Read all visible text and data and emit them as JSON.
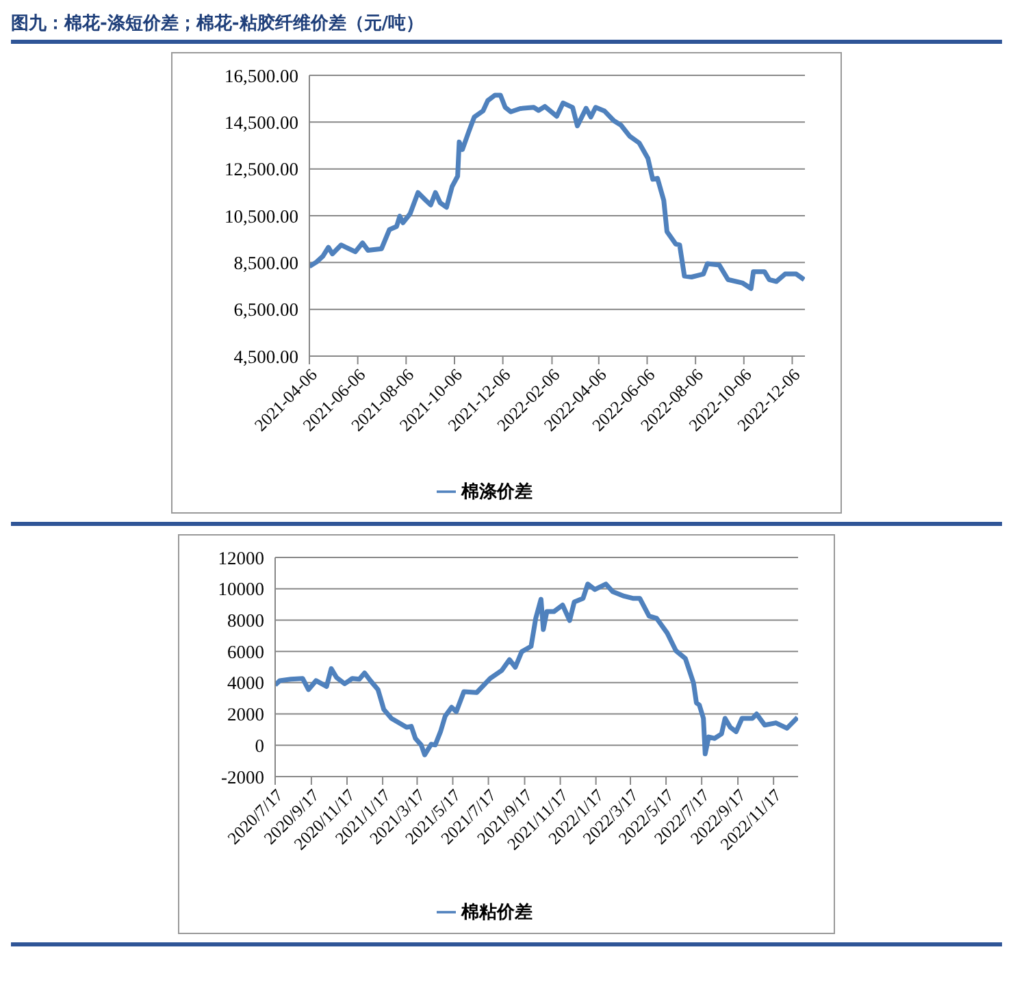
{
  "chart_data": [
    {
      "type": "line",
      "title": "图九：棉花-涤短价差；棉花-粘胶纤维价差（元/吨）",
      "xlim": [
        "2021-04-06",
        "2022-12-22"
      ],
      "xticks": [
        "2021-04-06",
        "2021-06-06",
        "2021-08-06",
        "2021-10-06",
        "2021-12-06",
        "2022-02-06",
        "2022-04-06",
        "2022-06-06",
        "2022-08-06",
        "2022-10-06",
        "2022-12-06"
      ],
      "ylim": [
        4500,
        16500
      ],
      "yticks": [
        {
          "value": 4500,
          "label": "4,500.00"
        },
        {
          "value": 6500,
          "label": "6,500.00"
        },
        {
          "value": 8500,
          "label": "8,500.00"
        },
        {
          "value": 10500,
          "label": "10,500.00"
        },
        {
          "value": 12500,
          "label": "12,500.00"
        },
        {
          "value": 14500,
          "label": "14,500.00"
        },
        {
          "value": 16500,
          "label": "16,500.00"
        }
      ],
      "grid": "y",
      "legend": "bottom",
      "marker": "none",
      "series": [
        {
          "name": "棉涤价差",
          "color": "#4f81bd",
          "x": [
            "2021-04-06",
            "2021-04-15",
            "2021-04-23",
            "2021-04-30",
            "2021-05-05",
            "2021-05-16",
            "2021-06-03",
            "2021-06-12",
            "2021-06-19",
            "2021-07-06",
            "2021-07-16",
            "2021-07-25",
            "2021-07-29",
            "2021-08-02",
            "2021-08-11",
            "2021-08-21",
            "2021-08-31",
            "2021-09-06",
            "2021-09-12",
            "2021-09-18",
            "2021-09-26",
            "2021-10-03",
            "2021-10-10",
            "2021-10-12",
            "2021-10-16",
            "2021-10-24",
            "2021-10-31",
            "2021-11-11",
            "2021-11-17",
            "2021-11-26",
            "2021-12-03",
            "2021-12-09",
            "2021-12-16",
            "2021-12-28",
            "2022-01-14",
            "2022-01-20",
            "2022-01-28",
            "2022-02-12",
            "2022-02-20",
            "2022-03-04",
            "2022-03-10",
            "2022-03-21",
            "2022-03-27",
            "2022-04-02",
            "2022-04-13",
            "2022-04-25",
            "2022-05-04",
            "2022-05-15",
            "2022-05-27",
            "2022-06-07",
            "2022-06-13",
            "2022-06-19",
            "2022-06-27",
            "2022-07-01",
            "2022-07-12",
            "2022-07-17",
            "2022-07-23",
            "2022-08-01",
            "2022-08-16",
            "2022-08-21",
            "2022-09-05",
            "2022-09-16",
            "2022-10-04",
            "2022-10-15",
            "2022-10-18",
            "2022-11-01",
            "2022-11-07",
            "2022-11-16",
            "2022-11-27",
            "2022-12-11",
            "2022-12-21"
          ],
          "values": [
            8330,
            8520,
            8770,
            9150,
            8870,
            9250,
            8960,
            9340,
            9020,
            9090,
            9910,
            10040,
            10480,
            10200,
            10580,
            11490,
            11150,
            10960,
            11490,
            11050,
            10860,
            11750,
            12190,
            13650,
            13330,
            14090,
            14720,
            14980,
            15420,
            15650,
            15650,
            15130,
            14940,
            15080,
            15130,
            15000,
            15170,
            14750,
            15320,
            15130,
            14340,
            15090,
            14720,
            15130,
            14980,
            14560,
            14370,
            13900,
            13610,
            12950,
            12060,
            12100,
            11150,
            9820,
            9290,
            9250,
            7920,
            7880,
            8010,
            8450,
            8390,
            7770,
            7630,
            7390,
            8110,
            8110,
            7770,
            7690,
            8010,
            8010,
            7770
          ]
        }
      ]
    },
    {
      "type": "line",
      "xlim": [
        "2020-07-17",
        "2022-12-29"
      ],
      "xticks": [
        {
          "value": "2020-07-17",
          "label": "2020/7/17"
        },
        {
          "value": "2020-09-17",
          "label": "2020/9/17"
        },
        {
          "value": "2020-11-17",
          "label": "2020/11/17"
        },
        {
          "value": "2021-01-17",
          "label": "2021/1/17"
        },
        {
          "value": "2021-03-17",
          "label": "2021/3/17"
        },
        {
          "value": "2021-05-17",
          "label": "2021/5/17"
        },
        {
          "value": "2021-07-17",
          "label": "2021/7/17"
        },
        {
          "value": "2021-09-17",
          "label": "2021/9/17"
        },
        {
          "value": "2021-11-17",
          "label": "2021/11/17"
        },
        {
          "value": "2022-01-17",
          "label": "2022/1/17"
        },
        {
          "value": "2022-03-17",
          "label": "2022/3/17"
        },
        {
          "value": "2022-05-17",
          "label": "2022/5/17"
        },
        {
          "value": "2022-07-17",
          "label": "2022/7/17"
        },
        {
          "value": "2022-09-17",
          "label": "2022/9/17"
        },
        {
          "value": "2022-11-17",
          "label": "2022/11/17"
        }
      ],
      "ylim": [
        -2000,
        12000
      ],
      "yticks": [
        -2000,
        0,
        2000,
        4000,
        6000,
        8000,
        10000,
        12000
      ],
      "grid": "y",
      "legend": "bottom",
      "marker": "none",
      "series": [
        {
          "name": "棉粘价差",
          "color": "#4f81bd",
          "x": [
            "2020-07-17",
            "2020-07-25",
            "2020-08-13",
            "2020-09-02",
            "2020-09-12",
            "2020-09-25",
            "2020-10-13",
            "2020-10-21",
            "2020-10-30",
            "2020-11-13",
            "2020-11-26",
            "2020-12-08",
            "2020-12-17",
            "2020-12-27",
            "2021-01-09",
            "2021-01-19",
            "2021-02-01",
            "2021-02-27",
            "2021-03-07",
            "2021-03-14",
            "2021-03-24",
            "2021-03-30",
            "2021-04-10",
            "2021-04-17",
            "2021-04-26",
            "2021-05-04",
            "2021-05-15",
            "2021-05-23",
            "2021-06-05",
            "2021-06-27",
            "2021-07-20",
            "2021-08-09",
            "2021-08-22",
            "2021-09-01",
            "2021-09-12",
            "2021-09-28",
            "2021-10-06",
            "2021-10-15",
            "2021-10-19",
            "2021-10-25",
            "2021-11-06",
            "2021-11-21",
            "2021-12-03",
            "2021-12-11",
            "2021-12-26",
            "2022-01-03",
            "2022-01-15",
            "2022-02-03",
            "2022-02-15",
            "2022-03-06",
            "2022-03-21",
            "2022-04-02",
            "2022-04-18",
            "2022-05-01",
            "2022-05-19",
            "2022-06-03",
            "2022-06-19",
            "2022-07-03",
            "2022-07-08",
            "2022-07-13",
            "2022-07-20",
            "2022-07-23",
            "2022-07-29",
            "2022-08-08",
            "2022-08-20",
            "2022-08-26",
            "2022-09-04",
            "2022-09-14",
            "2022-09-24",
            "2022-10-12",
            "2022-10-19",
            "2022-11-02",
            "2022-11-21",
            "2022-12-10",
            "2022-12-28"
          ],
          "values": [
            3850,
            4130,
            4220,
            4270,
            3560,
            4130,
            3760,
            4900,
            4330,
            3930,
            4270,
            4220,
            4620,
            4130,
            3560,
            2290,
            1720,
            1150,
            1210,
            440,
            20,
            -610,
            70,
            20,
            870,
            1860,
            2430,
            2150,
            3420,
            3370,
            4270,
            4790,
            5470,
            4990,
            5980,
            6320,
            8110,
            9330,
            7400,
            8540,
            8540,
            8960,
            7970,
            9160,
            9390,
            10300,
            9950,
            10300,
            9810,
            9530,
            9390,
            9390,
            8250,
            8110,
            7170,
            6040,
            5550,
            3990,
            2710,
            2570,
            1720,
            -550,
            530,
            440,
            730,
            1720,
            1150,
            870,
            1720,
            1720,
            2000,
            1290,
            1430,
            1090,
            1780
          ]
        }
      ]
    }
  ]
}
